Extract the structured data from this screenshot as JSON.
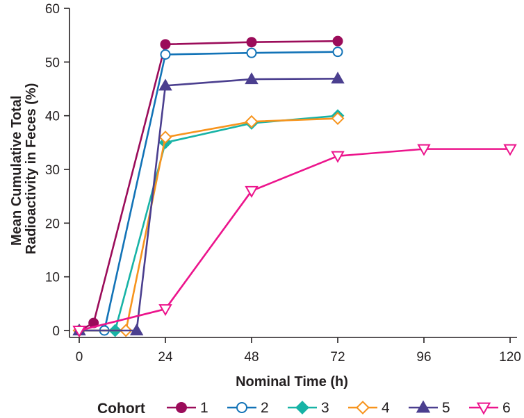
{
  "chart_data": {
    "type": "line",
    "title": "",
    "xlabel": "Nominal Time (h)",
    "ylabel_lines": [
      "Mean Cumulative Total",
      "Radioactivity in Feces (%)"
    ],
    "xlim": [
      0,
      120
    ],
    "ylim": [
      0,
      60
    ],
    "xticks": [
      0,
      24,
      48,
      72,
      96,
      120
    ],
    "yticks": [
      0,
      10,
      20,
      30,
      40,
      50,
      60
    ],
    "grid": false,
    "legend_title": "Cohort",
    "legend_position": "bottom",
    "series": [
      {
        "name": "1",
        "color": "#9b0c5a",
        "marker": "circle",
        "filled": true,
        "x": [
          0,
          4,
          24,
          48,
          72
        ],
        "y": [
          0,
          1.4,
          53.3,
          53.7,
          53.9
        ]
      },
      {
        "name": "2",
        "color": "#1273b7",
        "marker": "circle",
        "filled": false,
        "x": [
          0,
          7,
          24,
          48,
          72
        ],
        "y": [
          0,
          0,
          51.4,
          51.7,
          51.9
        ]
      },
      {
        "name": "3",
        "color": "#17b3a6",
        "marker": "diamond",
        "filled": true,
        "x": [
          0,
          10,
          24,
          48,
          72
        ],
        "y": [
          0,
          0,
          35,
          38.6,
          40
        ]
      },
      {
        "name": "4",
        "color": "#f7941d",
        "marker": "diamond",
        "filled": false,
        "x": [
          0,
          13,
          24,
          48,
          72
        ],
        "y": [
          0,
          0,
          36,
          38.9,
          39.5
        ]
      },
      {
        "name": "5",
        "color": "#4b3f8f",
        "marker": "triangle-up",
        "filled": true,
        "x": [
          0,
          16,
          24,
          48,
          72
        ],
        "y": [
          0,
          0,
          45.6,
          46.8,
          46.9
        ]
      },
      {
        "name": "6",
        "color": "#ec148c",
        "marker": "triangle-down",
        "filled": false,
        "x": [
          0,
          24,
          48,
          72,
          96,
          120
        ],
        "y": [
          0,
          4,
          26,
          32.5,
          33.8,
          33.8
        ]
      }
    ]
  }
}
